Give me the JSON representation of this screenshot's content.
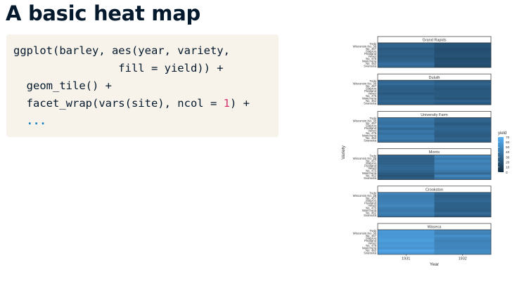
{
  "slide": {
    "title": "A basic heat map"
  },
  "code": {
    "line1": "ggplot(barley, aes(year, variety,",
    "line2": "                fill = yield)) +",
    "line3": "  geom_tile() +",
    "line4_pre": "  facet_wrap(vars(site), ncol = ",
    "line4_num": "1",
    "line4_post": ") +",
    "line5": "  ..."
  },
  "chart_data": {
    "type": "heatmap",
    "xlabel": "Year",
    "ylabel": "Variety",
    "x": [
      "1931",
      "1932"
    ],
    "varieties": [
      "Trebi",
      "Wisconsin No. 38",
      "No. 457",
      "Glabron",
      "Peatland",
      "Velvet",
      "No. 475",
      "Manchuria",
      "No. 462",
      "Svansota"
    ],
    "legend": {
      "title": "yield",
      "ticks": [
        70,
        60,
        50,
        40,
        30,
        20,
        10,
        0
      ],
      "min": 0,
      "max": 70
    },
    "facets": [
      {
        "site": "Grand Rapids",
        "values": [
          [
            29,
            21
          ],
          [
            29,
            21
          ],
          [
            24,
            18
          ],
          [
            27,
            19
          ],
          [
            27,
            20
          ],
          [
            25,
            21
          ],
          [
            27,
            17
          ],
          [
            30,
            19
          ],
          [
            35,
            20
          ],
          [
            32,
            17
          ]
        ]
      },
      {
        "site": "Duluth",
        "values": [
          [
            30,
            25
          ],
          [
            34,
            29
          ],
          [
            27,
            25
          ],
          [
            26,
            22
          ],
          [
            27,
            24
          ],
          [
            24,
            24
          ],
          [
            29,
            25
          ],
          [
            28,
            22
          ],
          [
            31,
            29
          ],
          [
            27,
            23
          ]
        ]
      },
      {
        "site": "University Farm",
        "values": [
          [
            40,
            30
          ],
          [
            38,
            30
          ],
          [
            36,
            24
          ],
          [
            41,
            28
          ],
          [
            32,
            31
          ],
          [
            40,
            28
          ],
          [
            36,
            26
          ],
          [
            41,
            25
          ],
          [
            41,
            30
          ],
          [
            35,
            26
          ]
        ]
      },
      {
        "site": "Morris",
        "values": [
          [
            30,
            48
          ],
          [
            26,
            40
          ],
          [
            28,
            47
          ],
          [
            28,
            42
          ],
          [
            31,
            46
          ],
          [
            32,
            45
          ],
          [
            30,
            41
          ],
          [
            25,
            33
          ],
          [
            21,
            46
          ],
          [
            25,
            37
          ]
        ]
      },
      {
        "site": "Crookston",
        "values": [
          [
            48,
            32
          ],
          [
            42,
            27
          ],
          [
            43,
            30
          ],
          [
            44,
            32
          ],
          [
            45,
            28
          ],
          [
            48,
            28
          ],
          [
            43,
            27
          ],
          [
            40,
            26
          ],
          [
            44,
            33
          ],
          [
            39,
            26
          ]
        ]
      },
      {
        "site": "Waseca",
        "values": [
          [
            58,
            48
          ],
          [
            56,
            45
          ],
          [
            57,
            52
          ],
          [
            58,
            48
          ],
          [
            60,
            45
          ],
          [
            56,
            47
          ],
          [
            58,
            48
          ],
          [
            55,
            47
          ],
          [
            63,
            50
          ],
          [
            57,
            50
          ]
        ]
      }
    ]
  }
}
